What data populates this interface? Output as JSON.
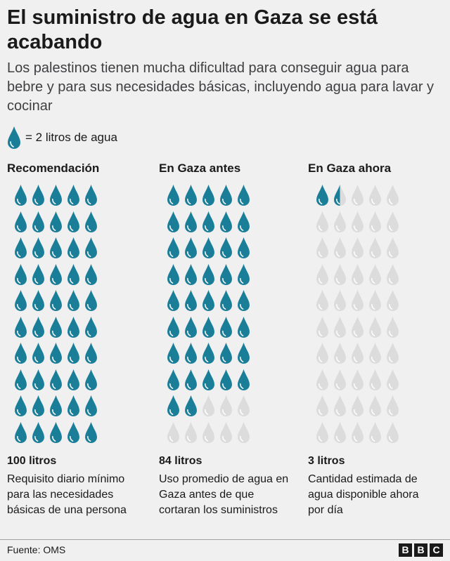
{
  "title": "El suministro de agua en Gaza se está acabando",
  "subtitle": "Los palestinos tienen mucha dificultad para conseguir agua para bebre y para sus necesidades básicas, incluyendo agua para lavar y cocinar",
  "legend": {
    "icon": "water-drop-icon",
    "text": "= 2 litros de agua"
  },
  "colors": {
    "filled": "#1b7e99",
    "empty": "#dcdcdc",
    "background": "#f0f0f0"
  },
  "chart_data": {
    "type": "pictogram",
    "unit_per_icon": 2,
    "total_icons_per_column": 50,
    "series": [
      {
        "name": "Recomendación",
        "value_label": "100 litros",
        "liters": 100,
        "filled_icons": 50,
        "description": "Requisito diario mínimo para las necesidades básicas de una persona"
      },
      {
        "name": "En Gaza antes",
        "value_label": "84 litros",
        "liters": 84,
        "filled_icons": 42,
        "description": "Uso promedio de agua en Gaza antes de que cortaran los suministros"
      },
      {
        "name": "En Gaza ahora",
        "value_label": "3 litros",
        "liters": 3,
        "filled_icons": 1.5,
        "description": "Cantidad estimada de agua disponible ahora por día"
      }
    ]
  },
  "footer": {
    "source": "Fuente: OMS",
    "logo": [
      "B",
      "B",
      "C"
    ]
  }
}
